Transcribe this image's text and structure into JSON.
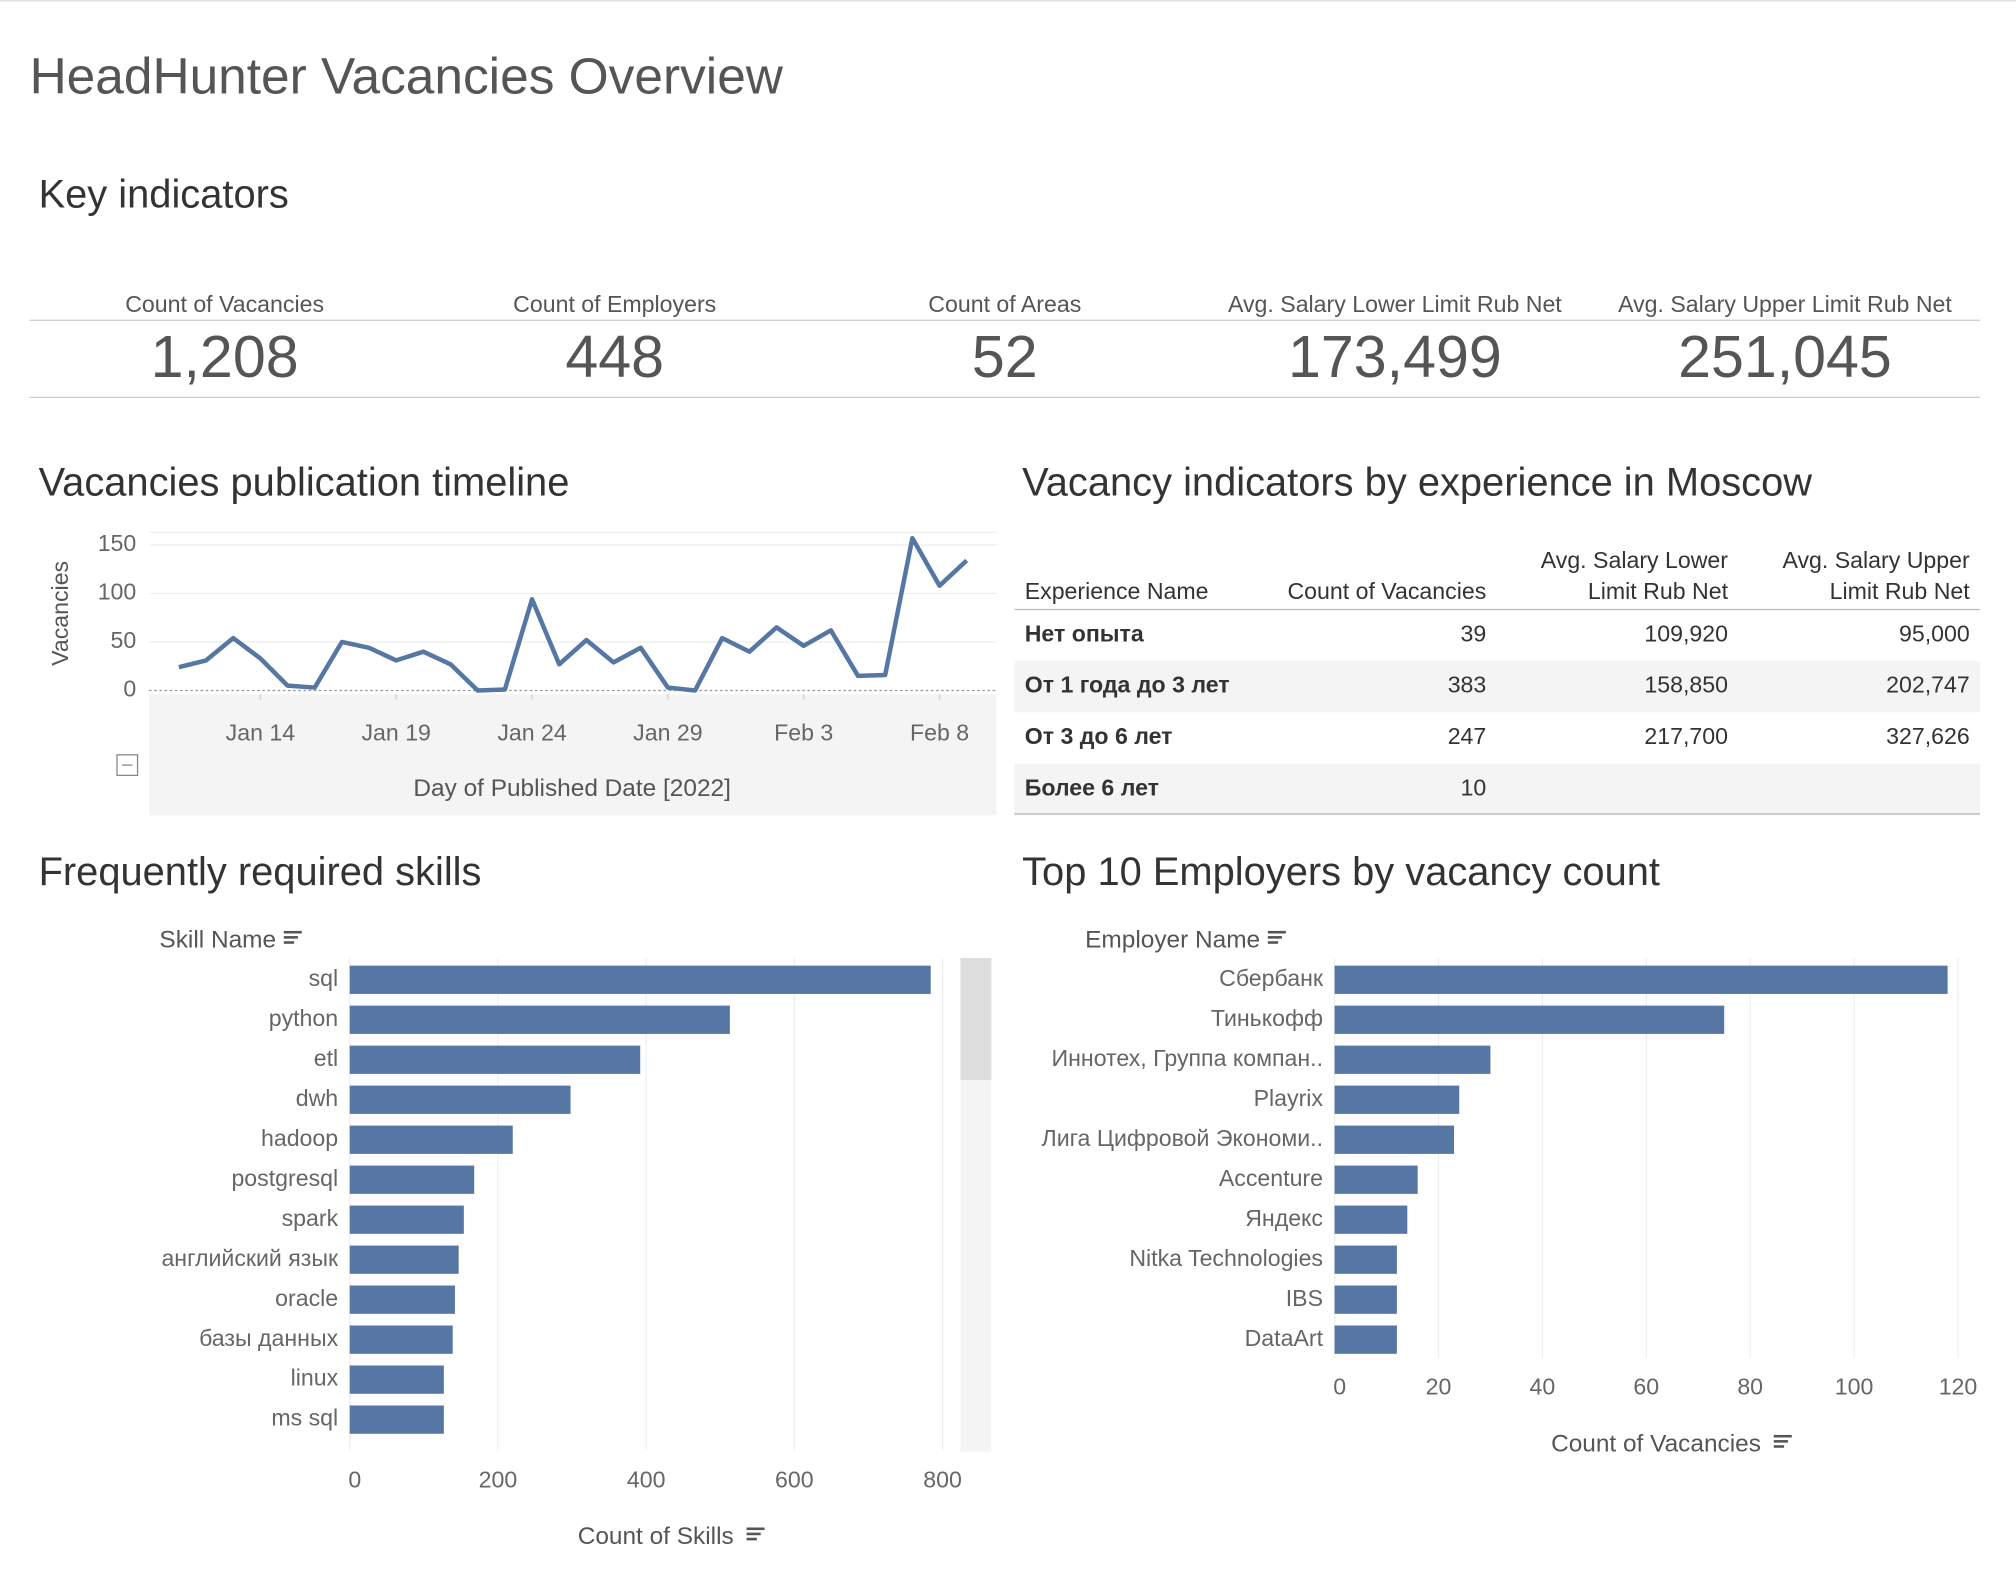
{
  "title": "HeadHunter Vacancies Overview",
  "kpis": {
    "title": "Key indicators",
    "items": [
      {
        "label": "Count of Vacancies",
        "value": "1,208"
      },
      {
        "label": "Count of Employers",
        "value": "448"
      },
      {
        "label": "Count of Areas",
        "value": "52"
      },
      {
        "label": "Avg. Salary Lower Limit Rub Net",
        "value": "173,499"
      },
      {
        "label": "Avg. Salary Upper Limit Rub Net",
        "value": "251,045"
      }
    ]
  },
  "table": {
    "title": "Vacancy indicators by experience in Moscow",
    "headers": [
      [
        "Experience Name"
      ],
      [
        "Count of Vacancies"
      ],
      [
        "Avg. Salary Lower",
        "Limit Rub Net"
      ],
      [
        "Avg. Salary Upper",
        "Limit Rub Net"
      ]
    ],
    "rows": [
      [
        "Нет опыта",
        "39",
        "109,920",
        "95,000"
      ],
      [
        "От 1 года до 3 лет",
        "383",
        "158,850",
        "202,747"
      ],
      [
        "От 3 до 6 лет",
        "247",
        "217,700",
        "327,626"
      ],
      [
        "Более 6 лет",
        "10"
      ]
    ]
  },
  "chart_data": [
    {
      "type": "line",
      "title": "Vacancies publication timeline",
      "x_label": "Day of Published Date [2022]",
      "y_label": "Vacancies",
      "x": [
        "2022-01-11",
        "2022-01-12",
        "2022-01-13",
        "2022-01-14",
        "2022-01-15",
        "2022-01-16",
        "2022-01-17",
        "2022-01-18",
        "2022-01-19",
        "2022-01-20",
        "2022-01-21",
        "2022-01-22",
        "2022-01-23",
        "2022-01-24",
        "2022-01-25",
        "2022-01-26",
        "2022-01-27",
        "2022-01-28",
        "2022-01-29",
        "2022-01-30",
        "2022-01-31",
        "2022-02-01",
        "2022-02-02",
        "2022-02-03",
        "2022-02-04",
        "2022-02-05",
        "2022-02-06",
        "2022-02-07",
        "2022-02-08",
        "2022-02-09"
      ],
      "series": [
        {
          "name": "Vacancies",
          "color": "#5677a4",
          "values": [
            24,
            31,
            54,
            33,
            5,
            3,
            50,
            44,
            31,
            40,
            27,
            0,
            1,
            94,
            27,
            52,
            29,
            44,
            3,
            0,
            54,
            40,
            65,
            46,
            62,
            15,
            16,
            157,
            108,
            134
          ]
        }
      ],
      "xlim": [
        "2022-01-10",
        "2022-02-10"
      ],
      "xticks": [
        {
          "value": "2022-01-14",
          "label": "Jan 14"
        },
        {
          "value": "2022-01-19",
          "label": "Jan 19"
        },
        {
          "value": "2022-01-24",
          "label": "Jan 24"
        },
        {
          "value": "2022-01-29",
          "label": "Jan 29"
        },
        {
          "value": "2022-02-03",
          "label": "Feb 3"
        },
        {
          "value": "2022-02-08",
          "label": "Feb 8"
        }
      ],
      "ylim": [
        -4,
        163
      ],
      "yticks": [
        0,
        50,
        100,
        150
      ],
      "grid": true
    },
    {
      "type": "barh",
      "title": "Frequently required skills",
      "y_label": "Skill Name",
      "x_label": "Count of Skills",
      "categories": [
        "sql",
        "python",
        "etl",
        "dwh",
        "hadoop",
        "postgresql",
        "spark",
        "английский язык",
        "oracle",
        "базы данных",
        "linux",
        "ms sql"
      ],
      "values": [
        784,
        513,
        392,
        298,
        220,
        168,
        154,
        147,
        142,
        139,
        127,
        127
      ],
      "color": "#5677a4",
      "xlim": [
        0,
        864
      ],
      "xticks": [
        0,
        200,
        400,
        600,
        800
      ],
      "grid": true
    },
    {
      "type": "barh",
      "title": "Top 10 Employers by vacancy count",
      "y_label": "Employer Name",
      "x_label": "Count of Vacancies",
      "categories": [
        "Сбербанк",
        "Тинькофф",
        "Иннотех, Группа компан..",
        "Playrix",
        "Лига Цифровой Экономи..",
        "Accenture",
        "Яндекс",
        "Nitka Technologies",
        "IBS",
        "DataArt"
      ],
      "values": [
        118,
        75,
        30,
        24,
        23,
        16,
        14,
        12,
        12,
        12
      ],
      "color": "#5677a4",
      "xlim": [
        0,
        123
      ],
      "xticks": [
        0,
        20,
        40,
        60,
        80,
        100,
        120
      ],
      "grid": true
    }
  ]
}
